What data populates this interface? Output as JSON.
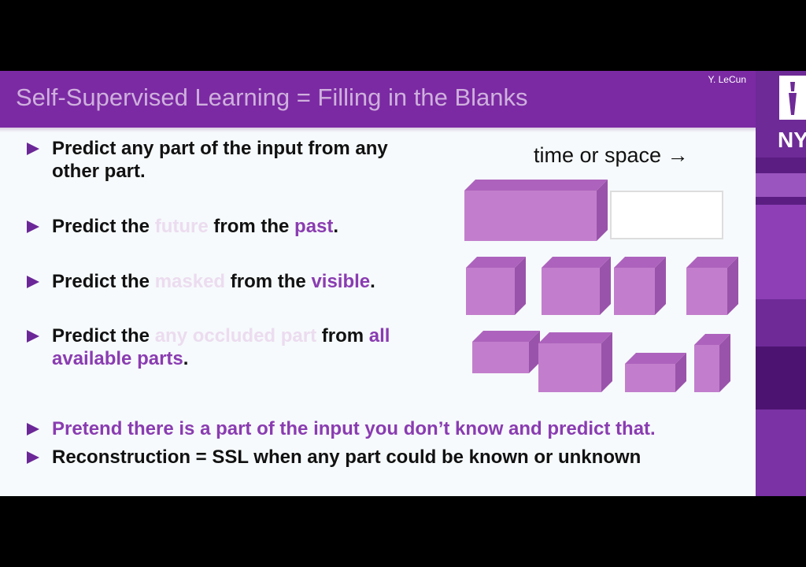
{
  "slide": {
    "title": "Self-Supervised Learning = Filling in the Blanks",
    "author": "Y. LeCun",
    "diagram_label": "time or space →",
    "bullets": [
      {
        "lines": [
          "Predict any part of the input from any",
          "other part."
        ]
      },
      {
        "parts": [
          "Predict the ",
          "future",
          " from the ",
          "past",
          "."
        ]
      },
      {
        "parts": [
          "Predict the ",
          "masked",
          " from the ",
          "visible",
          "."
        ]
      },
      {
        "parts": [
          "Predict the ",
          "any occluded part",
          " from ",
          "all",
          "available parts",
          "."
        ]
      },
      {
        "text": "Pretend there is a part of the input you don’t know and predict that."
      },
      {
        "text": "Reconstruction = SSL when any part could be known or unknown"
      }
    ]
  },
  "logo": {
    "text": "NY"
  },
  "colors": {
    "title_bar": "#7b2aa3",
    "accent": "#8a3cb1",
    "box": "#c27ecc"
  }
}
